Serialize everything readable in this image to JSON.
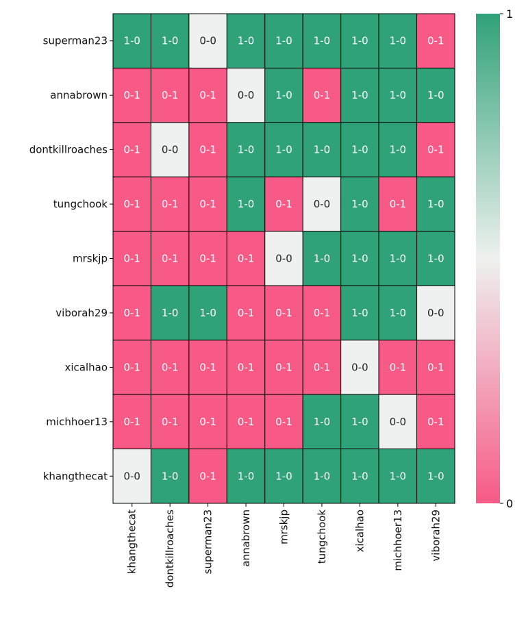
{
  "chart_data": {
    "type": "heatmap",
    "rows": [
      "superman23",
      "annabrown",
      "dontkillroaches",
      "tungchook",
      "mrskjp",
      "viborah29",
      "xicalhao",
      "michhoer13",
      "khangthecat"
    ],
    "columns": [
      "khangthecat",
      "dontkillroaches",
      "superman23",
      "annabrown",
      "mrskjp",
      "tungchook",
      "xicalhao",
      "michhoer13",
      "viborah29"
    ],
    "values": [
      [
        1,
        1,
        0.5,
        1,
        1,
        1,
        1,
        1,
        0
      ],
      [
        0,
        0,
        0,
        0.5,
        1,
        0,
        1,
        1,
        1
      ],
      [
        0,
        0.5,
        0,
        1,
        1,
        1,
        1,
        1,
        0
      ],
      [
        0,
        0,
        0,
        1,
        0,
        0.5,
        1,
        0,
        1
      ],
      [
        0,
        0,
        0,
        0,
        0.5,
        1,
        1,
        1,
        1
      ],
      [
        0,
        1,
        1,
        0,
        0,
        0,
        1,
        1,
        0.5
      ],
      [
        0,
        0,
        0,
        0,
        0,
        0,
        0.5,
        0,
        0
      ],
      [
        0,
        0,
        0,
        0,
        0,
        1,
        1,
        0.5,
        0
      ],
      [
        0.5,
        1,
        0,
        1,
        1,
        1,
        1,
        1,
        1
      ]
    ],
    "annotations": [
      [
        "1-0",
        "1-0",
        "0-0",
        "1-0",
        "1-0",
        "1-0",
        "1-0",
        "1-0",
        "0-1"
      ],
      [
        "0-1",
        "0-1",
        "0-1",
        "0-0",
        "1-0",
        "0-1",
        "1-0",
        "1-0",
        "1-0"
      ],
      [
        "0-1",
        "0-0",
        "0-1",
        "1-0",
        "1-0",
        "1-0",
        "1-0",
        "1-0",
        "0-1"
      ],
      [
        "0-1",
        "0-1",
        "0-1",
        "1-0",
        "0-1",
        "0-0",
        "1-0",
        "0-1",
        "1-0"
      ],
      [
        "0-1",
        "0-1",
        "0-1",
        "0-1",
        "0-0",
        "1-0",
        "1-0",
        "1-0",
        "1-0"
      ],
      [
        "0-1",
        "1-0",
        "1-0",
        "0-1",
        "0-1",
        "0-1",
        "1-0",
        "1-0",
        "0-0"
      ],
      [
        "0-1",
        "0-1",
        "0-1",
        "0-1",
        "0-1",
        "0-1",
        "0-0",
        "0-1",
        "0-1"
      ],
      [
        "0-1",
        "0-1",
        "0-1",
        "0-1",
        "0-1",
        "1-0",
        "1-0",
        "0-0",
        "0-1"
      ],
      [
        "0-0",
        "1-0",
        "0-1",
        "1-0",
        "1-0",
        "1-0",
        "1-0",
        "1-0",
        "1-0"
      ]
    ],
    "colorbar": {
      "min": 0,
      "max": 1,
      "ticks": [
        "0",
        "1"
      ]
    },
    "colors": {
      "low": "#f75a86",
      "mid": "#eef1ef",
      "high": "#2fa277"
    }
  }
}
